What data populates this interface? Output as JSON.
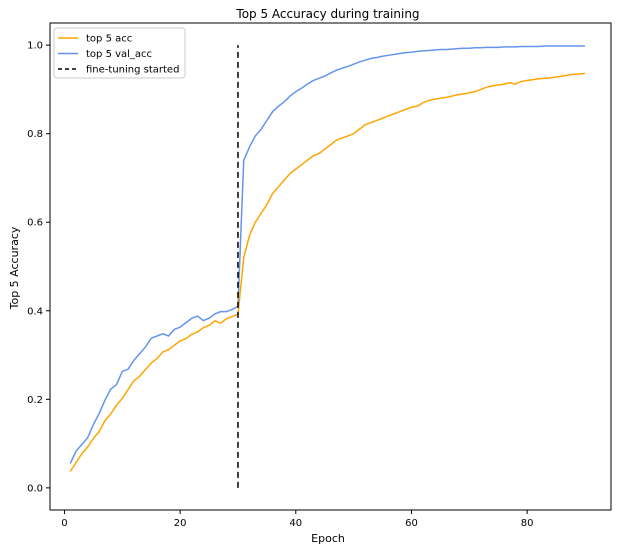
{
  "chart_data": {
    "type": "line",
    "title": "Top 5 Accuracy during training",
    "xlabel": "Epoch",
    "ylabel": "Top 5 Accuracy",
    "xlim": [
      -2.5,
      94.5
    ],
    "ylim": [
      -0.05,
      1.05
    ],
    "x_ticks": [
      0,
      20,
      40,
      60,
      80
    ],
    "y_ticks": [
      0.0,
      0.2,
      0.4,
      0.6,
      0.8,
      1.0
    ],
    "x_tick_labels": [
      "0",
      "20",
      "40",
      "60",
      "80"
    ],
    "y_tick_labels": [
      "0.0",
      "0.2",
      "0.4",
      "0.6",
      "0.8",
      "1.0"
    ],
    "grid": false,
    "legend_position": "top-left",
    "series": [
      {
        "name": "top 5 acc",
        "color": "#ffa500",
        "x": [
          1,
          2,
          3,
          4,
          5,
          6,
          7,
          8,
          9,
          10,
          11,
          12,
          13,
          14,
          15,
          16,
          17,
          18,
          19,
          20,
          21,
          22,
          23,
          24,
          25,
          26,
          27,
          28,
          29,
          30,
          31,
          32,
          33,
          34,
          35,
          36,
          37,
          38,
          39,
          40,
          41,
          42,
          43,
          44,
          45,
          46,
          47,
          48,
          49,
          50,
          51,
          52,
          53,
          54,
          55,
          56,
          57,
          58,
          59,
          60,
          61,
          62,
          63,
          64,
          65,
          66,
          67,
          68,
          69,
          70,
          71,
          72,
          73,
          74,
          75,
          76,
          77,
          78,
          79,
          80,
          81,
          82,
          83,
          84,
          85,
          86,
          87,
          88,
          89,
          90
        ],
        "values": [
          0.037,
          0.057,
          0.077,
          0.092,
          0.112,
          0.127,
          0.152,
          0.167,
          0.187,
          0.202,
          0.222,
          0.242,
          0.252,
          0.267,
          0.282,
          0.292,
          0.307,
          0.312,
          0.322,
          0.332,
          0.337,
          0.347,
          0.352,
          0.362,
          0.367,
          0.377,
          0.372,
          0.382,
          0.387,
          0.392,
          0.52,
          0.57,
          0.6,
          0.62,
          0.64,
          0.665,
          0.68,
          0.695,
          0.71,
          0.72,
          0.73,
          0.74,
          0.75,
          0.755,
          0.765,
          0.775,
          0.785,
          0.79,
          0.795,
          0.8,
          0.81,
          0.82,
          0.825,
          0.83,
          0.835,
          0.84,
          0.845,
          0.85,
          0.855,
          0.86,
          0.862,
          0.87,
          0.875,
          0.878,
          0.88,
          0.882,
          0.885,
          0.888,
          0.89,
          0.892,
          0.895,
          0.9,
          0.905,
          0.908,
          0.91,
          0.912,
          0.915,
          0.912,
          0.918,
          0.92,
          0.922,
          0.924,
          0.925,
          0.926,
          0.928,
          0.93,
          0.932,
          0.934,
          0.935,
          0.936
        ]
      },
      {
        "name": "top 5 val_acc",
        "color": "#6495ed",
        "x": [
          1,
          2,
          3,
          4,
          5,
          6,
          7,
          8,
          9,
          10,
          11,
          12,
          13,
          14,
          15,
          16,
          17,
          18,
          19,
          20,
          21,
          22,
          23,
          24,
          25,
          26,
          27,
          28,
          29,
          30,
          31,
          32,
          33,
          34,
          35,
          36,
          37,
          38,
          39,
          40,
          41,
          42,
          43,
          44,
          45,
          46,
          47,
          48,
          49,
          50,
          51,
          52,
          53,
          54,
          55,
          56,
          57,
          58,
          59,
          60,
          61,
          62,
          63,
          64,
          65,
          66,
          67,
          68,
          69,
          70,
          71,
          72,
          73,
          74,
          75,
          76,
          77,
          78,
          79,
          80,
          81,
          82,
          83,
          84,
          85,
          86,
          87,
          88,
          89,
          90
        ],
        "values": [
          0.055,
          0.083,
          0.098,
          0.113,
          0.143,
          0.168,
          0.198,
          0.223,
          0.233,
          0.263,
          0.268,
          0.288,
          0.303,
          0.318,
          0.338,
          0.343,
          0.348,
          0.343,
          0.358,
          0.363,
          0.373,
          0.383,
          0.388,
          0.378,
          0.383,
          0.393,
          0.398,
          0.398,
          0.403,
          0.41,
          0.74,
          0.77,
          0.795,
          0.81,
          0.83,
          0.85,
          0.862,
          0.872,
          0.885,
          0.895,
          0.903,
          0.912,
          0.92,
          0.925,
          0.93,
          0.937,
          0.943,
          0.948,
          0.952,
          0.957,
          0.962,
          0.966,
          0.97,
          0.972,
          0.975,
          0.977,
          0.979,
          0.981,
          0.983,
          0.984,
          0.986,
          0.987,
          0.988,
          0.989,
          0.99,
          0.99,
          0.991,
          0.992,
          0.993,
          0.993,
          0.994,
          0.994,
          0.995,
          0.995,
          0.995,
          0.996,
          0.996,
          0.996,
          0.997,
          0.997,
          0.997,
          0.997,
          0.998,
          0.998,
          0.998,
          0.998,
          0.998,
          0.998,
          0.998,
          0.998
        ]
      }
    ],
    "annotations": [
      {
        "name": "fine-tuning started",
        "type": "vline",
        "x": 30,
        "y_range": [
          0.0,
          1.0
        ],
        "color": "#000000",
        "style": "dashed"
      }
    ]
  }
}
